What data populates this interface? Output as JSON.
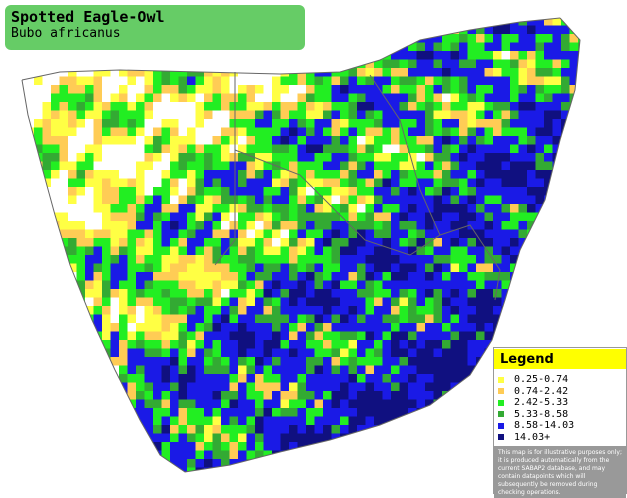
{
  "header": {
    "title": "Spotted Eagle-Owl",
    "subtitle": "Bubo africanus"
  },
  "legend": {
    "title": "Legend",
    "items": [
      {
        "label": "0.25-0.74",
        "color": "#ffff44"
      },
      {
        "label": "0.74-2.42",
        "color": "#ffcc55"
      },
      {
        "label": "2.42-5.33",
        "color": "#22ee22"
      },
      {
        "label": "5.33-8.58",
        "color": "#33aa33"
      },
      {
        "label": "8.58-14.03",
        "color": "#1a1ae6"
      },
      {
        "label": "14.03+",
        "color": "#101080"
      }
    ],
    "note": "This map is for illustrative purposes only; it is produced automatically from the current SABAP2 database, and may contain datapoints which will subsequently be removed during checking operations."
  }
}
